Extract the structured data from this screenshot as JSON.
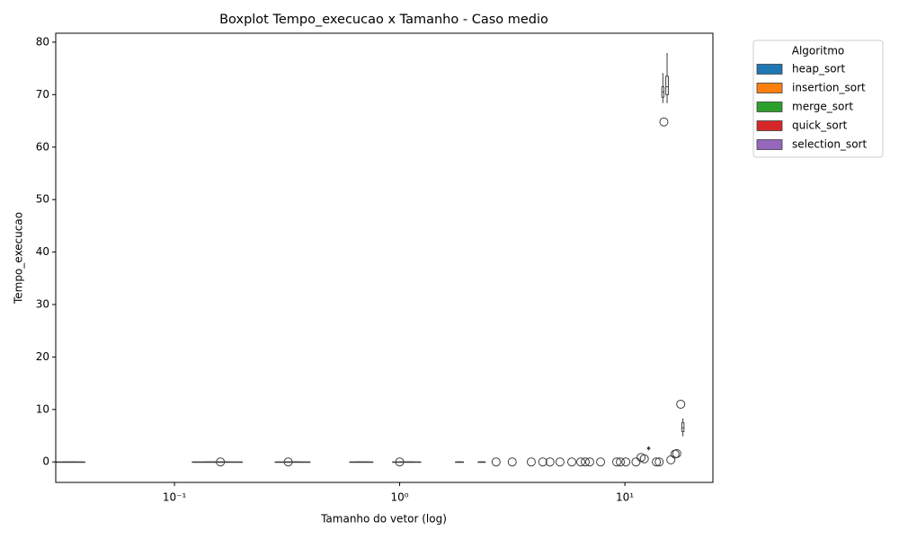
{
  "chart_data": {
    "type": "box",
    "title": "Boxplot Tempo_execucao x Tamanho - Caso medio",
    "xlabel": "Tamanho do vetor (log)",
    "ylabel": "Tempo_execucao",
    "xscale": "log",
    "xlim": [
      0.0297,
      24.6
    ],
    "ylim": [
      -3.9,
      81.7
    ],
    "xticks": [
      {
        "value": 0.1,
        "label": "10⁻¹"
      },
      {
        "value": 1,
        "label": "10⁰"
      },
      {
        "value": 10,
        "label": "10¹"
      }
    ],
    "yticks": [
      0,
      10,
      20,
      30,
      40,
      50,
      60,
      70,
      80
    ],
    "box_color": "#3f3f3f",
    "boxes": [
      {
        "x": [
          0.0297,
          0.04
        ],
        "stats": [
          0,
          0,
          0,
          0,
          0
        ]
      },
      {
        "x": [
          0.12,
          0.2
        ],
        "stats": [
          0,
          0,
          0,
          0,
          0
        ]
      },
      {
        "x": [
          0.28,
          0.4
        ],
        "stats": [
          0,
          0,
          0,
          0,
          0
        ]
      },
      {
        "x": [
          0.6,
          0.76
        ],
        "stats": [
          0,
          0,
          0,
          0,
          0
        ]
      },
      {
        "x": [
          0.93,
          1.24
        ],
        "stats": [
          0,
          0,
          0,
          0,
          0
        ]
      },
      {
        "x": [
          1.77,
          1.92
        ],
        "stats": [
          0,
          0,
          0,
          0,
          0
        ]
      },
      {
        "x": [
          2.23,
          2.4
        ],
        "stats": [
          0,
          0,
          0,
          0,
          0
        ]
      },
      {
        "x": [
          12.6,
          12.9
        ],
        "stats": [
          2.3,
          2.5,
          2.6,
          2.7,
          2.9
        ]
      },
      {
        "x": [
          14.6,
          14.9
        ],
        "stats": [
          68.5,
          69.5,
          70.5,
          71.5,
          74
        ]
      },
      {
        "x": [
          15.2,
          15.6
        ],
        "stats": [
          68.5,
          70,
          71.5,
          73.5,
          77.8
        ]
      },
      {
        "x": [
          17.9,
          18.3
        ],
        "stats": [
          5,
          5.8,
          6.5,
          7.5,
          8.2
        ]
      }
    ],
    "outliers": {
      "x": [
        0.16,
        0.32,
        1.0,
        2.68,
        3.16,
        3.84,
        4.32,
        4.65,
        5.15,
        5.81,
        6.37,
        6.67,
        6.98,
        7.8,
        9.2,
        9.55,
        10.1,
        11.2,
        11.8,
        12.2,
        13.8,
        14.2,
        14.9,
        16.0,
        16.7,
        17.0,
        17.7
      ],
      "y": [
        0,
        0,
        0,
        0,
        0,
        0,
        0,
        0,
        0,
        0,
        0,
        0,
        0,
        0,
        0,
        0,
        0,
        0,
        0.86,
        0.6,
        0,
        0,
        64.8,
        0.4,
        1.5,
        1.6,
        11
      ]
    },
    "legend": {
      "title": "Algoritmo",
      "loc": "outside upper right",
      "entries": [
        {
          "name": "heap_sort",
          "color": "#1f77b4"
        },
        {
          "name": "insertion_sort",
          "color": "#ff7f0e"
        },
        {
          "name": "merge_sort",
          "color": "#2ca02c"
        },
        {
          "name": "quick_sort",
          "color": "#d62728"
        },
        {
          "name": "selection_sort",
          "color": "#9467bd"
        }
      ]
    }
  }
}
